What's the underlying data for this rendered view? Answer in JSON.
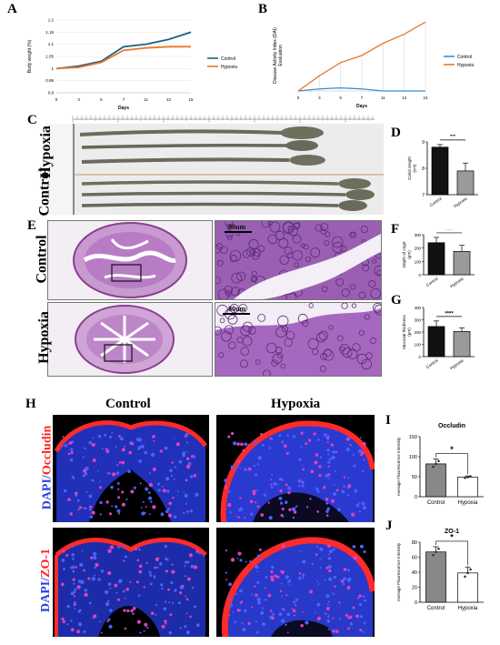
{
  "panels": {
    "A": "A",
    "B": "B",
    "C": "C",
    "D": "D",
    "E": "E",
    "F": "F",
    "G": "G",
    "H": "H",
    "I": "I",
    "J": "J"
  },
  "panel_c": {
    "hypoxia_label": "Hypoxia",
    "control_label": "Control"
  },
  "panel_e": {
    "control_label": "Control",
    "hypoxia_label": "Hypoxia",
    "scale_top": "80um",
    "scale_bottom": "80um"
  },
  "panel_h": {
    "col_control": "Control",
    "col_hypoxia": "Hypoxia",
    "row1_prefix": "DAPI/",
    "row1_marker": "Occludin",
    "row2_prefix": "DAPI/",
    "row2_marker": "ZO-1"
  },
  "colors": {
    "control": "#1f5f80",
    "hypoxia": "#e8782a",
    "b_control": "#3c8dcc",
    "b_hypoxia": "#e8782a",
    "dapi": "#2b3fe0",
    "red": "#ff2020"
  },
  "chart_data": [
    {
      "id": "A",
      "type": "line",
      "xlabel": "Days",
      "ylabel": "Body weight (%)",
      "x": [
        0,
        3,
        5,
        7,
        11,
        13,
        15
      ],
      "series": [
        {
          "name": "Control",
          "values": [
            1.0,
            1.01,
            1.03,
            1.09,
            1.1,
            1.12,
            1.15
          ]
        },
        {
          "name": "Hypoxia",
          "values": [
            1.0,
            1.005,
            1.025,
            1.075,
            1.085,
            1.09,
            1.09
          ]
        }
      ],
      "ylim": [
        0.9,
        1.2
      ],
      "yticks": [
        "0.9",
        "0.95",
        "1",
        "1.05",
        "1.1",
        "1.15",
        "1.2"
      ],
      "xticks": [
        "0",
        "3",
        "5",
        "7",
        "11",
        "13",
        "15"
      ],
      "legend": "right"
    },
    {
      "id": "B",
      "type": "line",
      "xlabel": "Days",
      "ylabel": "Disease Activity Index (DAI) Evaluation",
      "x": [
        0,
        3,
        5,
        7,
        11,
        13,
        15
      ],
      "series": [
        {
          "name": "Control",
          "values": [
            0,
            0.2,
            0.3,
            0.2,
            0,
            0,
            0
          ]
        },
        {
          "name": "Hypoxia",
          "values": [
            0,
            1.5,
            2.8,
            3.5,
            4.7,
            5.6,
            6.8
          ]
        }
      ],
      "ylim": [
        0,
        7
      ],
      "xticks": [
        "0",
        "3",
        "5",
        "7",
        "11",
        "13",
        "15"
      ],
      "legend": "right"
    },
    {
      "id": "D",
      "type": "bar",
      "ylabel": "Colon length (cm)",
      "categories": [
        "Control",
        "Hypoxia"
      ],
      "values": [
        8.8,
        7.9
      ],
      "errors": [
        0.1,
        0.3
      ],
      "ylim": [
        7,
        9
      ],
      "yticks": [
        "7",
        "8",
        "9"
      ],
      "significance": "**"
    },
    {
      "id": "F",
      "type": "bar",
      "ylabel": "Depth of crypt (μm)",
      "categories": [
        "Control",
        "Hypoxia"
      ],
      "values": [
        240,
        175
      ],
      "errors": [
        40,
        45
      ],
      "ylim": [
        0,
        300
      ],
      "yticks": [
        "0",
        "100",
        "200",
        "300"
      ],
      "significance": "****"
    },
    {
      "id": "G",
      "type": "bar",
      "ylabel": "Mucosal thickness (μm)",
      "categories": [
        "Control",
        "Hypoxia"
      ],
      "values": [
        245,
        205
      ],
      "errors": [
        45,
        30
      ],
      "ylim": [
        0,
        400
      ],
      "yticks": [
        "0",
        "100",
        "200",
        "300",
        "400"
      ],
      "significance": "****"
    },
    {
      "id": "I",
      "type": "bar",
      "title": "Occludin",
      "ylabel": "Average Flourescence Intensity",
      "categories": [
        "Control",
        "Hypoxia"
      ],
      "values": [
        82,
        49
      ],
      "errors": [
        12,
        3
      ],
      "ylim": [
        0,
        150
      ],
      "yticks": [
        "0",
        "50",
        "100",
        "150"
      ],
      "significance": "*"
    },
    {
      "id": "J",
      "type": "bar",
      "title": "ZO-1",
      "ylabel": "Average Flourescence Intensity",
      "categories": [
        "Control",
        "Hypoxia"
      ],
      "values": [
        67,
        39
      ],
      "errors": [
        7,
        8
      ],
      "ylim": [
        0,
        80
      ],
      "yticks": [
        "0",
        "20",
        "40",
        "60",
        "80"
      ],
      "significance": "*"
    }
  ]
}
